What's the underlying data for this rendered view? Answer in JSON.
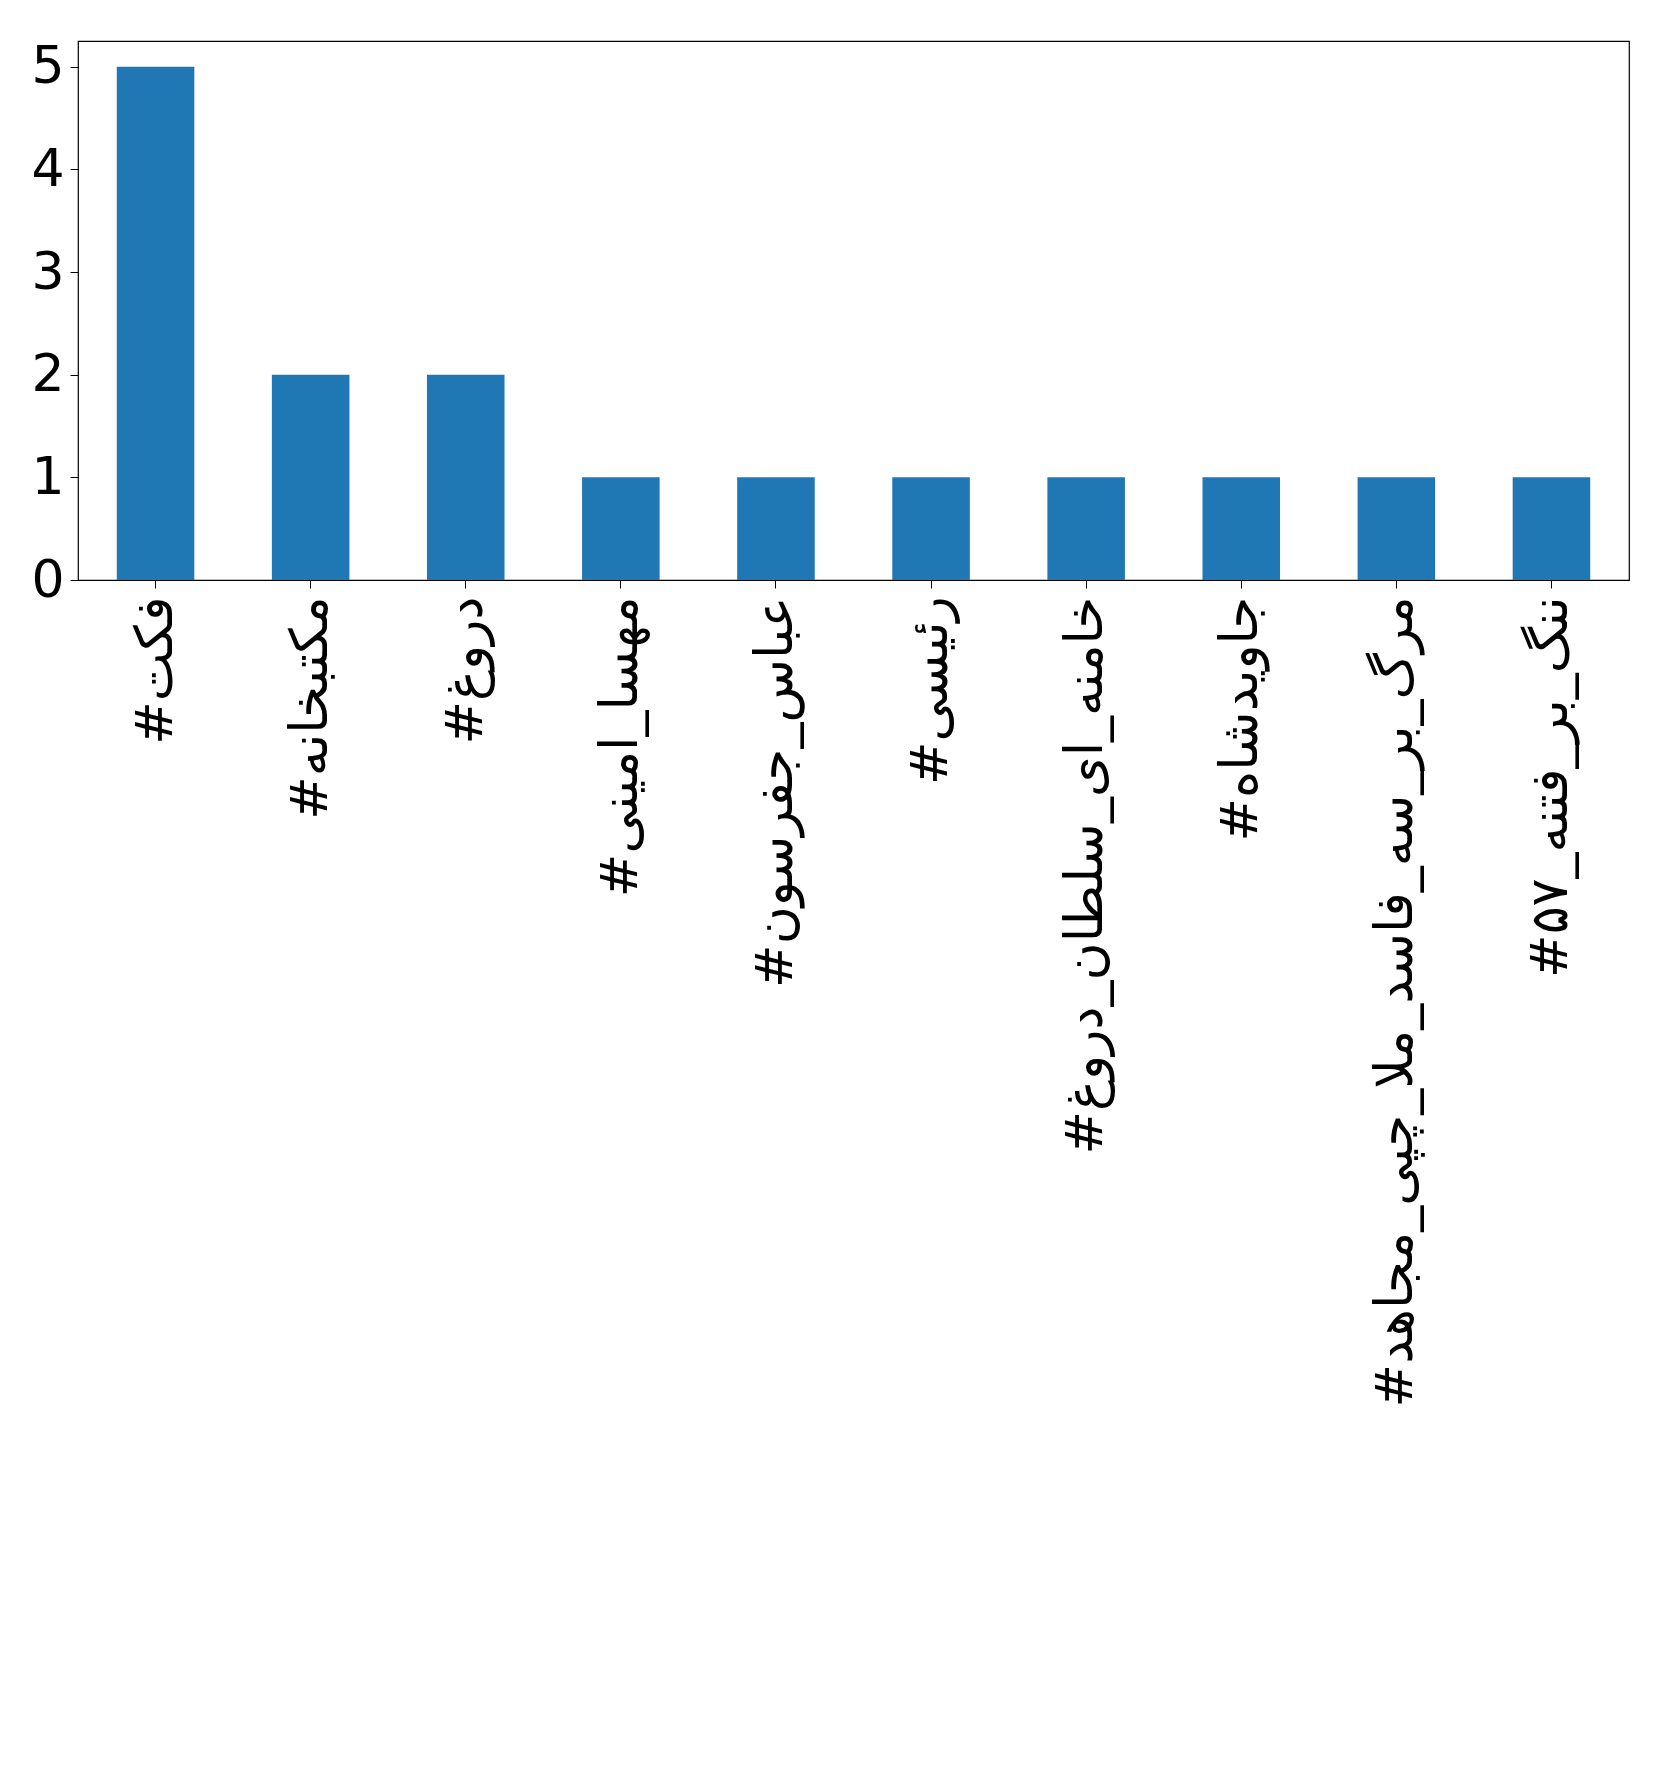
{
  "chart_data": {
    "type": "bar",
    "categories": [
      "#فکت",
      "#مکتبخانه",
      "#دروغ",
      "#مهسا_امینی",
      "#عباس_جفرسون",
      "#رئیسی",
      "#خامنه_ای_سلطان_دروغ",
      "#جاویدشاه",
      "#مرگ_بر_سه_فاسد_ملا_چپی_مجاهد",
      "#ننگ_بر_فتنه_۵۷"
    ],
    "values": [
      5,
      2,
      2,
      1,
      1,
      1,
      1,
      1,
      1,
      1
    ],
    "color": "#1f77b4",
    "ylim": [
      0,
      5.25
    ],
    "yticks": [
      0,
      1,
      2,
      3,
      4,
      5
    ],
    "grid": false
  }
}
